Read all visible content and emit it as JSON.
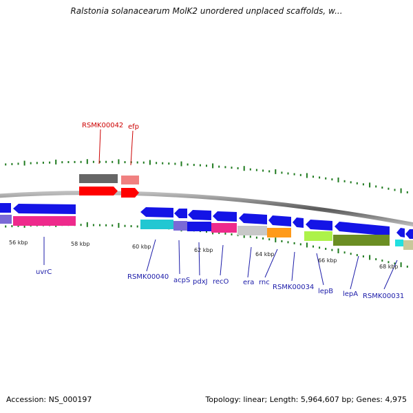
{
  "title": "Ralstonia solanacearum MolK2 unordered unplaced scaffolds, w...",
  "footer": {
    "accession": "Accession: NS_000197",
    "info": "Topology: linear; Length: 5,964,607 bp; Genes: 4,975"
  },
  "scale_labels": [
    "56 kbp",
    "58 kbp",
    "60 kbp",
    "62 kbp",
    "64 kbp",
    "66 kbp",
    "68 kbp"
  ],
  "gene_labels_top": [
    "RSMK00042",
    "efp"
  ],
  "gene_labels_bottom": [
    "uvrC",
    "RSMK00040",
    "acpS",
    "pdxJ",
    "recO",
    "era",
    "rnc",
    "RSMK00034",
    "lepB",
    "lepA",
    "RSMK00031"
  ],
  "colors": {
    "blue": "#1414e6",
    "red": "#ff0000",
    "grey": "#777777",
    "tick": "#1e7a1e",
    "label_blue": "#1a1aa8",
    "label_red": "#cc0000"
  }
}
